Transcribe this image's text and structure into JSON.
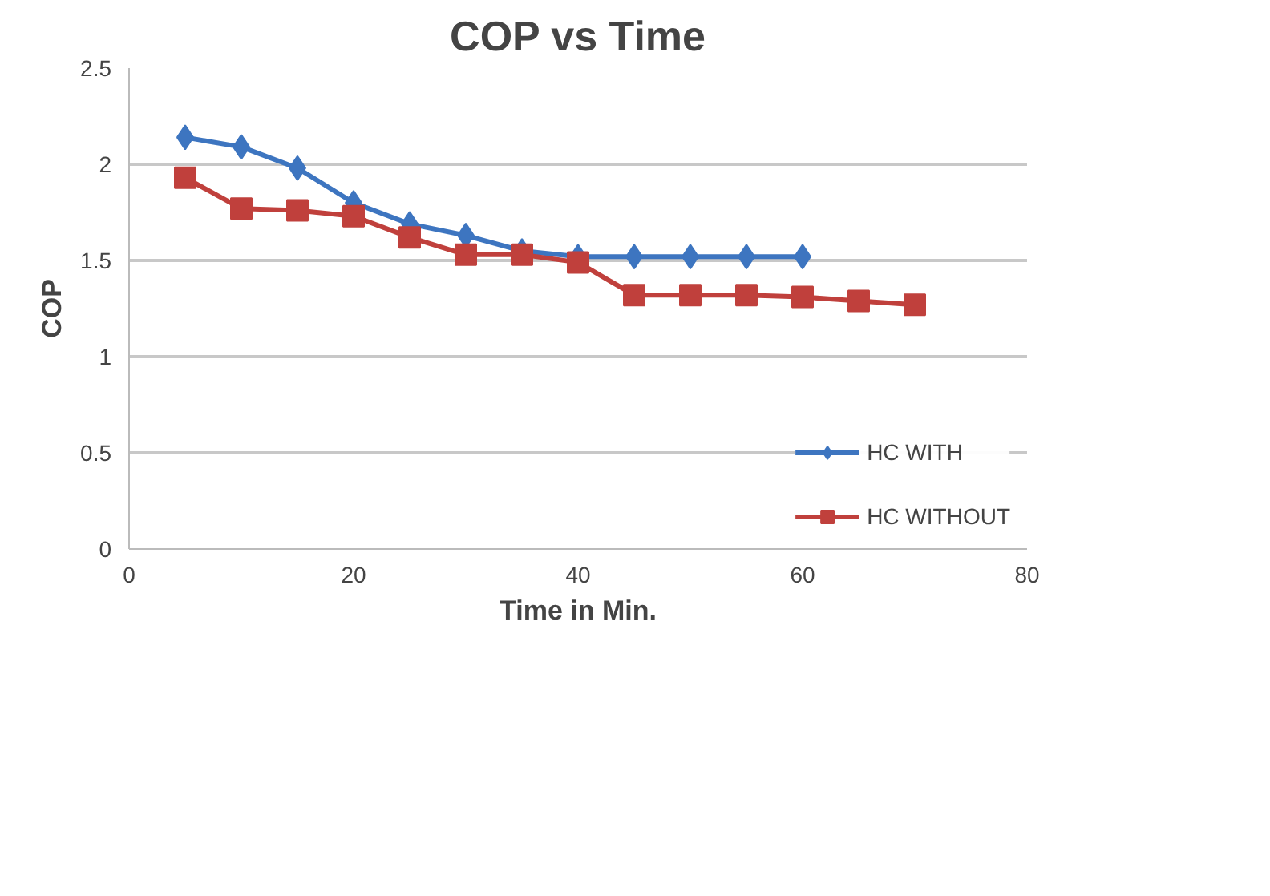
{
  "chart_data": {
    "type": "line",
    "title": "COP vs Time",
    "xlabel": "Time in Min.",
    "ylabel": "COP",
    "x": [
      5,
      10,
      15,
      20,
      25,
      30,
      35,
      40,
      45,
      50,
      55,
      60,
      65,
      70
    ],
    "series": [
      {
        "name": "HC WITH",
        "color": "#3d75c0",
        "marker": "diamond",
        "values": [
          2.14,
          2.09,
          1.98,
          1.8,
          1.69,
          1.63,
          1.55,
          1.52,
          1.52,
          1.52,
          1.52,
          1.52,
          null,
          null
        ]
      },
      {
        "name": "HC WITHOUT",
        "color": "#c0403c",
        "marker": "square",
        "values": [
          1.93,
          1.77,
          1.76,
          1.73,
          1.62,
          1.53,
          1.53,
          1.49,
          1.32,
          1.32,
          1.32,
          1.31,
          1.29,
          1.27
        ]
      }
    ],
    "xlim": [
      0,
      80
    ],
    "xticks": [
      0,
      20,
      40,
      60,
      80
    ],
    "ylim": [
      0,
      2.5
    ],
    "yticks": [
      0,
      0.5,
      1,
      1.5,
      2,
      2.5
    ],
    "grid": "y",
    "legend": "bottom right"
  }
}
